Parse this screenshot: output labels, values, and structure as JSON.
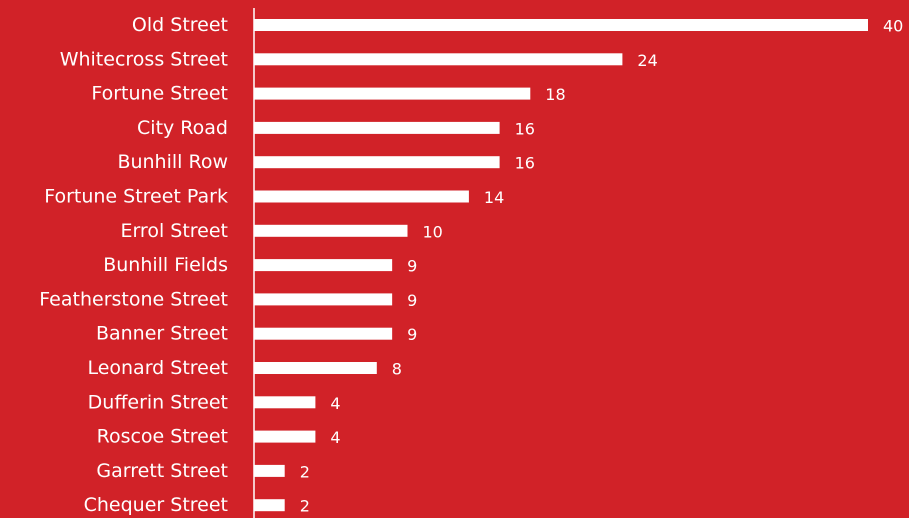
{
  "chart_data": {
    "type": "bar",
    "orientation": "horizontal",
    "categories": [
      "Old Street",
      "Whitecross Street",
      "Fortune Street",
      "City Road",
      "Bunhill Row",
      "Fortune Street Park",
      "Errol Street",
      "Bunhill Fields",
      "Featherstone Street",
      "Banner Street",
      "Leonard Street",
      "Dufferin Street",
      "Roscoe Street",
      "Garrett Street",
      "Chequer Street"
    ],
    "values": [
      40,
      24,
      18,
      16,
      16,
      14,
      10,
      9,
      9,
      9,
      8,
      4,
      4,
      2,
      2
    ],
    "title": "",
    "xlabel": "",
    "ylabel": "",
    "xlim": [
      0,
      40
    ],
    "grid": false,
    "legend": "none",
    "data_labels": true
  },
  "colors": {
    "background": "#d12228",
    "bar": "#ffffff",
    "text": "#ffffff",
    "axis": "#ffffff"
  }
}
